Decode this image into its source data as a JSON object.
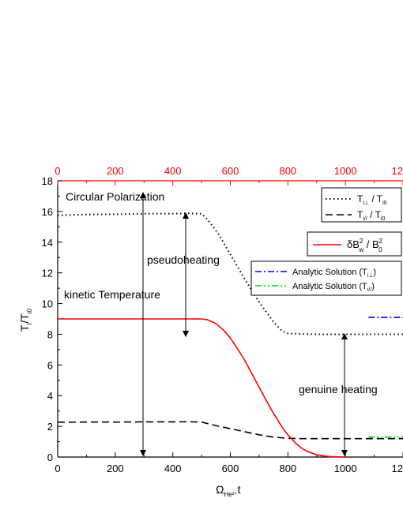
{
  "chart_data": {
    "type": "line",
    "title": "Circular Polarization",
    "x_bottom": {
      "label_main": "Ω",
      "label_sub": "He²⁺",
      "label_tail": "t",
      "ticks": [
        "0",
        "200",
        "400",
        "600",
        "800",
        "1000",
        "12"
      ],
      "range": [
        0,
        1200
      ]
    },
    "x_top": {
      "ticks": [
        "0",
        "200",
        "400",
        "600",
        "800",
        "1000",
        "12"
      ],
      "range": [
        0,
        1200
      ]
    },
    "y": {
      "label_main": "T",
      "label_sub1": "i",
      "label_mid": "/T",
      "label_sub2": "i0",
      "ticks": [
        "0",
        "2",
        "4",
        "6",
        "8",
        "10",
        "12",
        "14",
        "16",
        "18"
      ],
      "range": [
        0,
        18
      ]
    },
    "grid": false,
    "legend_position": "top-right",
    "colors": {
      "axis": "#000000",
      "top_axis": "#ff0000",
      "red": "#ff0000",
      "blue": "#0000ff",
      "green": "#00dd00"
    },
    "series": [
      {
        "name": "T_i⊥ / T_i0",
        "style": "dotted",
        "color": "#000000",
        "x": [
          0,
          100,
          200,
          300,
          400,
          450,
          500,
          520,
          560,
          600,
          650,
          700,
          750,
          780,
          800,
          850,
          900,
          950,
          1000,
          1050,
          1100,
          1150,
          1200
        ],
        "y": [
          15.75,
          15.8,
          15.82,
          15.85,
          15.85,
          15.88,
          15.85,
          15.5,
          14.5,
          13.2,
          11.6,
          10.1,
          8.8,
          8.2,
          8.05,
          8.02,
          8.0,
          8.0,
          8.0,
          8.0,
          8.0,
          8.0,
          8.0
        ]
      },
      {
        "name": "T_i// / T_i0",
        "style": "dashed",
        "color": "#000000",
        "x": [
          0,
          100,
          200,
          300,
          400,
          450,
          500,
          550,
          600,
          650,
          700,
          750,
          800,
          850,
          900,
          950,
          1000,
          1050,
          1100,
          1150,
          1200
        ],
        "y": [
          2.27,
          2.28,
          2.28,
          2.29,
          2.29,
          2.3,
          2.28,
          2.05,
          1.85,
          1.65,
          1.45,
          1.3,
          1.22,
          1.2,
          1.2,
          1.2,
          1.2,
          1.2,
          1.2,
          1.2,
          1.2
        ]
      },
      {
        "name": "δB_w² / B_0²",
        "style": "solid",
        "color": "#ff0000",
        "x": [
          0,
          100,
          200,
          300,
          400,
          450,
          500,
          520,
          550,
          580,
          600,
          620,
          650,
          680,
          700,
          720,
          750,
          780,
          800,
          830,
          850,
          870,
          900,
          930,
          950,
          980,
          1000
        ],
        "y": [
          9.0,
          9.0,
          9.0,
          9.0,
          9.0,
          9.0,
          9.0,
          8.95,
          8.7,
          8.2,
          7.75,
          7.2,
          6.3,
          5.25,
          4.55,
          3.85,
          2.85,
          1.95,
          1.45,
          0.85,
          0.55,
          0.35,
          0.15,
          0.06,
          0.03,
          0.01,
          0.0
        ]
      },
      {
        "name": "Analytic Solution (T_i⊥)",
        "style": "dashdot",
        "color": "#0000ff",
        "x": [
          1080,
          1200
        ],
        "y": [
          9.1,
          9.1
        ]
      },
      {
        "name": "Analytic Solution (T_i//)",
        "style": "dashdotdot",
        "color": "#00dd00",
        "x": [
          1080,
          1200
        ],
        "y": [
          1.3,
          1.3
        ]
      }
    ],
    "legend": {
      "perp": {
        "T": "T",
        "sub": "i⊥",
        "sep": " / T",
        "sub2": "i0"
      },
      "par": {
        "T": "T",
        "sub": "i//",
        "sep": " / T",
        "sub2": "i0"
      },
      "wave": {
        "d": "δB",
        "sup1": "2",
        "sub1": "w",
        "sep": " / B",
        "sup2": "2",
        "sub2": "0"
      },
      "an_perp": {
        "text": "Analytic Solution (T",
        "sub": "i⊥",
        "close": ")"
      },
      "an_par": {
        "text": "Analytic Solution (T",
        "sub": "i//",
        "close": ")"
      }
    },
    "annotations": {
      "pseudo": "pseudoheating",
      "kinetic": "kinetic Temperature",
      "genuine": "genuine heating"
    }
  }
}
